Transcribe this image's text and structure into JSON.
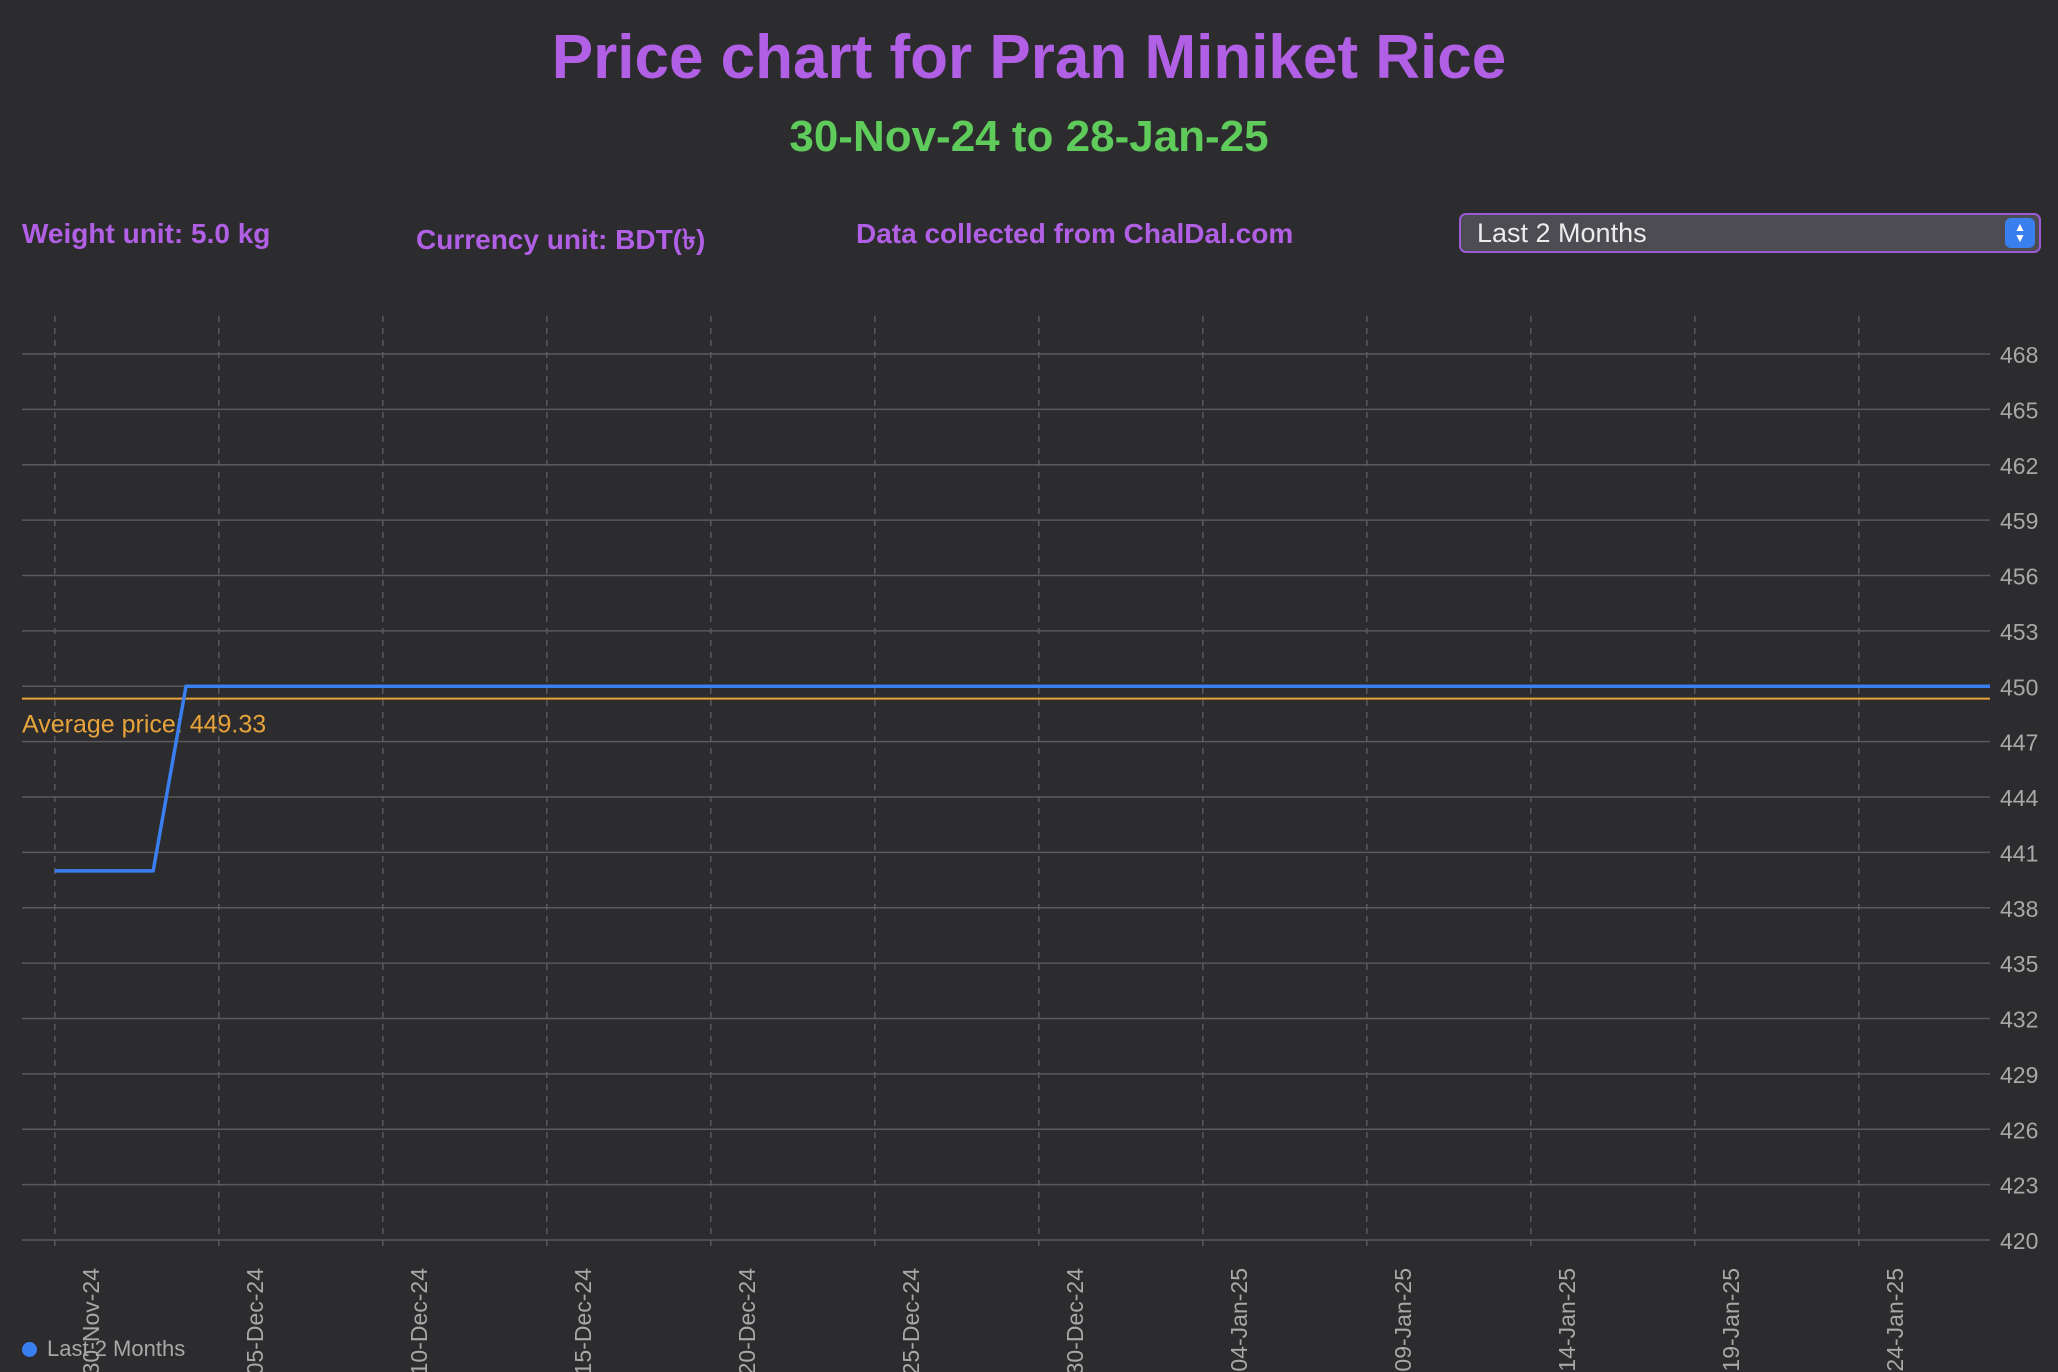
{
  "header": {
    "title": "Price chart for Pran Miniket Rice",
    "date_range": "30-Nov-24 to 28-Jan-25"
  },
  "info": {
    "weight_unit": "Weight unit: 5.0 kg",
    "currency_unit": "Currency unit: BDT(৳)",
    "source": "Data collected from ChalDal.com"
  },
  "range_select": {
    "selected": "Last 2 Months"
  },
  "colors": {
    "title": "#b160e6",
    "subtitle": "#5ecb5b",
    "series": "#3a7ff0",
    "average": "#e8a33a",
    "background": "#2c2b2d"
  },
  "chart_data": {
    "type": "line",
    "title": "Price chart for Pran Miniket Rice",
    "subtitle": "30-Nov-24 to 28-Jan-25",
    "xlabel": "",
    "ylabel": "",
    "x_range": [
      "29-Nov-24",
      "28-Jan-25"
    ],
    "ylim": [
      420,
      468
    ],
    "y_ticks": [
      420,
      423,
      426,
      429,
      432,
      435,
      438,
      441,
      444,
      447,
      450,
      453,
      456,
      459,
      462,
      465,
      468
    ],
    "x_ticks": [
      "30-Nov-24",
      "05-Dec-24",
      "10-Dec-24",
      "15-Dec-24",
      "20-Dec-24",
      "25-Dec-24",
      "30-Dec-24",
      "04-Jan-25",
      "09-Jan-25",
      "14-Jan-25",
      "19-Jan-25",
      "24-Jan-25"
    ],
    "grid": true,
    "legend": "bottom-left",
    "series": [
      {
        "name": "Last 2 Months",
        "points": [
          {
            "x": "30-Nov-24",
            "y": 440
          },
          {
            "x": "03-Dec-24",
            "y": 440
          },
          {
            "x": "04-Dec-24",
            "y": 450
          },
          {
            "x": "28-Jan-25",
            "y": 450
          }
        ]
      }
    ],
    "average": {
      "value": 449.33,
      "label": "Average price: 449.33"
    }
  }
}
